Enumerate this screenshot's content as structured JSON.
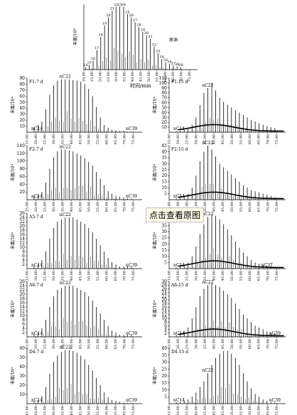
{
  "overlay": {
    "view_original_label": "点击查看原图"
  },
  "chart_data": [
    {
      "type": "line",
      "title": "原油",
      "ylabel": "丰度/10⁶",
      "xlabel": "时间/min",
      "xlim": [
        10,
        80
      ],
      "ylim": [
        0,
        4
      ],
      "x_ticks": [
        "10.00",
        "15.00",
        "20.00",
        "25.00",
        "30.00",
        "35.00",
        "40.00",
        "45.00",
        "50.00",
        "55.00",
        "60.00",
        "65.00",
        "70.00",
        "75.00"
      ],
      "y_ticks": [],
      "annotations": [
        "14",
        "15",
        "16",
        "17",
        "18",
        "19",
        "20",
        "21",
        "22",
        "23",
        "24",
        "25",
        "26",
        "27",
        "28",
        "29",
        "30",
        "31",
        "32",
        "33",
        "34",
        "35",
        "36",
        "37",
        "38",
        "39"
      ],
      "series": [
        {
          "name": "原油",
          "x": [
            14,
            15,
            16,
            17,
            18,
            19,
            20,
            21,
            22,
            23,
            24,
            25,
            26,
            27,
            28,
            29,
            30,
            31,
            32,
            33,
            34,
            35,
            36,
            37,
            38,
            39
          ],
          "y": [
            0.15,
            0.3,
            0.55,
            1.2,
            2.0,
            2.7,
            3.2,
            3.6,
            3.85,
            3.85,
            3.85,
            3.4,
            3.2,
            2.9,
            2.6,
            2.3,
            2.1,
            1.9,
            1.4,
            1.0,
            0.65,
            0.45,
            0.35,
            0.25,
            0.2,
            0.15
          ]
        }
      ]
    },
    {
      "type": "line",
      "title": "F1-7 d",
      "ylabel": "丰度/10⁴",
      "xlabel": "",
      "xlim": [
        15,
        80
      ],
      "ylim": [
        0,
        90
      ],
      "x_ticks": [
        "15.00",
        "20.00",
        "25.00",
        "30.00",
        "35.00",
        "40.00",
        "45.00",
        "50.00",
        "55.00",
        "60.00",
        "65.00",
        "70.00",
        "75.00"
      ],
      "y_ticks": [
        "10",
        "20",
        "30",
        "40",
        "50",
        "60",
        "70",
        "80",
        "90"
      ],
      "annotations": [
        "nC14",
        "nC22",
        "nC39"
      ],
      "series": [
        {
          "name": "F1-7 d",
          "x": [
            14,
            15,
            16,
            17,
            18,
            19,
            20,
            21,
            22,
            23,
            24,
            25,
            26,
            27,
            28,
            29,
            30,
            31,
            32,
            33,
            34,
            35,
            36,
            37,
            38,
            39
          ],
          "y": [
            8,
            12,
            18,
            38,
            62,
            78,
            86,
            88,
            88,
            88,
            87,
            86,
            84,
            80,
            72,
            60,
            42,
            25,
            12,
            7,
            4,
            3,
            2,
            2,
            1,
            1
          ]
        }
      ]
    },
    {
      "type": "line",
      "title": "F1-15 d",
      "ylabel": "丰度/10⁴",
      "xlabel": "",
      "xlim": [
        15,
        80
      ],
      "ylim": [
        0,
        110
      ],
      "x_ticks": [
        "15.00",
        "20.00",
        "25.00",
        "30.00",
        "35.00",
        "40.00",
        "45.00",
        "50.00",
        "55.00",
        "60.00",
        "65.00",
        "70.00",
        "75.00"
      ],
      "y_ticks": [
        "10",
        "20",
        "30",
        "40",
        "50",
        "60",
        "70",
        "80",
        "90",
        "100",
        "110"
      ],
      "annotations": [
        "nC14",
        "nC22"
      ],
      "series": [
        {
          "name": "F1-15 d",
          "x": [
            14,
            15,
            16,
            17,
            18,
            19,
            20,
            21,
            22,
            23,
            24,
            25,
            26,
            27,
            28,
            29,
            30,
            31,
            32,
            33,
            34,
            35,
            36,
            37,
            38,
            39
          ],
          "y": [
            2,
            3,
            5,
            8,
            15,
            30,
            55,
            80,
            90,
            100,
            85,
            70,
            62,
            56,
            50,
            45,
            40,
            35,
            30,
            25,
            22,
            18,
            15,
            12,
            10,
            8
          ]
        }
      ]
    },
    {
      "type": "line",
      "title": "F2-7 d",
      "ylabel": "丰度/10⁴",
      "xlabel": "",
      "xlim": [
        15,
        80
      ],
      "ylim": [
        0,
        140
      ],
      "x_ticks": [
        "15.00",
        "20.00",
        "25.00",
        "30.00",
        "35.00",
        "40.00",
        "45.00",
        "50.00",
        "55.00",
        "60.00",
        "65.00",
        "70.00",
        "75.00"
      ],
      "y_ticks": [
        "20",
        "40",
        "60",
        "80",
        "100",
        "120",
        "140"
      ],
      "annotations": [
        "nC14",
        "nC22",
        "nC39"
      ],
      "series": [
        {
          "name": "F2-7 d",
          "x": [
            14,
            15,
            16,
            17,
            18,
            19,
            20,
            21,
            22,
            23,
            24,
            25,
            26,
            27,
            28,
            29,
            30,
            31,
            32,
            33,
            34,
            35,
            36,
            37,
            38,
            39
          ],
          "y": [
            8,
            12,
            20,
            45,
            80,
            110,
            125,
            130,
            130,
            128,
            125,
            120,
            115,
            108,
            98,
            88,
            72,
            55,
            38,
            22,
            15,
            10,
            8,
            6,
            4,
            3
          ]
        }
      ]
    },
    {
      "type": "line",
      "title": "F2-15 d",
      "ylabel": "丰度/10⁴",
      "xlabel": "",
      "xlim": [
        15,
        80
      ],
      "ylim": [
        0,
        45
      ],
      "x_ticks": [
        "15.00",
        "20.00",
        "25.00",
        "30.00",
        "35.00",
        "40.00",
        "45.00",
        "50.00",
        "55.00",
        "60.00",
        "65.00",
        "70.00",
        "75.00"
      ],
      "y_ticks": [
        "5",
        "10",
        "15",
        "20",
        "25",
        "30",
        "35",
        "40",
        "45"
      ],
      "annotations": [
        "nC14",
        "nC22"
      ],
      "series": [
        {
          "name": "F2-15 d",
          "x": [
            14,
            15,
            16,
            17,
            18,
            19,
            20,
            21,
            22,
            23,
            24,
            25,
            26,
            27,
            28,
            29,
            30,
            31,
            32,
            33,
            34,
            35,
            36,
            37,
            38,
            39
          ],
          "y": [
            1,
            2,
            3,
            5,
            10,
            20,
            32,
            40,
            45,
            42,
            36,
            30,
            27,
            24,
            21,
            18,
            15,
            12,
            10,
            8,
            7,
            6,
            5,
            4,
            3,
            2
          ]
        }
      ]
    },
    {
      "type": "line",
      "title": "A5-7 d",
      "ylabel": "丰度/10⁴",
      "xlabel": "",
      "xlim": [
        15,
        80
      ],
      "ylim": [
        0,
        26
      ],
      "x_ticks": [
        "15.00",
        "20.00",
        "25.00",
        "30.00",
        "35.00",
        "40.00",
        "45.00",
        "50.00",
        "55.00",
        "60.00",
        "65.00",
        "70.00",
        "75.00"
      ],
      "y_ticks": [
        "2",
        "4",
        "6",
        "8",
        "10",
        "12",
        "14",
        "16",
        "18",
        "20",
        "22",
        "24",
        "26"
      ],
      "annotations": [
        "nC14",
        "nC22",
        "nC39"
      ],
      "series": [
        {
          "name": "A5-7 d",
          "x": [
            14,
            15,
            16,
            17,
            18,
            19,
            20,
            21,
            22,
            23,
            24,
            25,
            26,
            27,
            28,
            29,
            30,
            31,
            32,
            33,
            34,
            35,
            36,
            37,
            38,
            39
          ],
          "y": [
            1,
            2,
            4,
            8,
            14,
            19,
            22,
            23,
            24,
            24,
            24,
            23,
            22,
            21,
            19,
            17,
            14,
            11,
            8,
            5,
            3,
            2,
            1,
            1,
            1,
            1
          ]
        }
      ]
    },
    {
      "type": "line",
      "title": "A5-15 d",
      "ylabel": "丰度/10⁴",
      "xlabel": "",
      "xlim": [
        15,
        80
      ],
      "ylim": [
        0,
        45
      ],
      "x_ticks": [
        "15.00",
        "20.00",
        "25.00",
        "30.00",
        "35.00",
        "40.00",
        "45.00",
        "50.00",
        "55.00",
        "60.00",
        "65.00",
        "70.00",
        "75.00"
      ],
      "y_ticks": [
        "5",
        "10",
        "15",
        "20",
        "25",
        "30",
        "35",
        "40",
        "45"
      ],
      "annotations": [
        "nC14",
        "nC22",
        "nC37"
      ],
      "series": [
        {
          "name": "A5-15 d",
          "x": [
            14,
            15,
            16,
            17,
            18,
            19,
            20,
            21,
            22,
            23,
            24,
            25,
            26,
            27,
            28,
            29,
            30,
            31,
            32,
            33,
            34,
            35,
            36,
            37,
            38,
            39
          ],
          "y": [
            1,
            2,
            3,
            5,
            10,
            18,
            28,
            36,
            42,
            44,
            43,
            40,
            36,
            32,
            27,
            22,
            17,
            13,
            10,
            7,
            5,
            4,
            3,
            2,
            2,
            1
          ]
        }
      ]
    },
    {
      "type": "line",
      "title": "A6-7 d",
      "ylabel": "丰度/10⁴",
      "xlabel": "",
      "xlim": [
        15,
        80
      ],
      "ylim": [
        0,
        26
      ],
      "x_ticks": [
        "15.00",
        "20.00",
        "25.00",
        "30.00",
        "35.00",
        "40.00",
        "45.00",
        "50.00",
        "55.00",
        "60.00",
        "65.00",
        "70.00",
        "75.00"
      ],
      "y_ticks": [
        "2",
        "4",
        "6",
        "8",
        "10",
        "12",
        "14",
        "16",
        "18",
        "20",
        "22",
        "24",
        "26"
      ],
      "annotations": [
        "nC14",
        "nC22",
        "nC39"
      ],
      "series": [
        {
          "name": "A6-7 d",
          "x": [
            14,
            15,
            16,
            17,
            18,
            19,
            20,
            21,
            22,
            23,
            24,
            25,
            26,
            27,
            28,
            29,
            30,
            31,
            32,
            33,
            34,
            35,
            36,
            37,
            38,
            39
          ],
          "y": [
            1,
            2,
            4,
            8,
            14,
            19,
            22,
            23,
            24,
            24,
            24,
            23,
            22,
            21,
            19,
            17,
            14,
            11,
            8,
            5,
            3,
            2,
            1,
            1,
            1,
            1
          ]
        }
      ]
    },
    {
      "type": "line",
      "title": "A6-15 d",
      "ylabel": "丰度/10⁴",
      "xlabel": "",
      "xlim": [
        15,
        80
      ],
      "ylim": [
        0,
        30
      ],
      "x_ticks": [
        "15.00",
        "20.00",
        "25.00",
        "30.00",
        "35.00",
        "40.00",
        "45.00",
        "50.00",
        "55.00",
        "60.00",
        "65.00",
        "70.00",
        "75.00"
      ],
      "y_ticks": [
        "2",
        "4",
        "6",
        "8",
        "10",
        "12",
        "14",
        "16",
        "18",
        "20",
        "22",
        "24",
        "26",
        "28",
        "30"
      ],
      "annotations": [
        "nC14",
        "nC22",
        "nC39"
      ],
      "series": [
        {
          "name": "A6-15 d",
          "x": [
            14,
            15,
            16,
            17,
            18,
            19,
            20,
            21,
            22,
            23,
            24,
            25,
            26,
            27,
            28,
            29,
            30,
            31,
            32,
            33,
            34,
            35,
            36,
            37,
            38,
            39
          ],
          "y": [
            1,
            2,
            3,
            5,
            10,
            16,
            22,
            26,
            28,
            29,
            28,
            27,
            25,
            23,
            21,
            18,
            15,
            12,
            10,
            8,
            6,
            5,
            4,
            3,
            2,
            2
          ]
        }
      ]
    },
    {
      "type": "line",
      "title": "D4-7 d",
      "ylabel": "丰度/10⁴",
      "xlabel": "时间/min",
      "xlim": [
        15,
        80
      ],
      "ylim": [
        0,
        60
      ],
      "x_ticks": [
        "15.00",
        "20.00",
        "25.00",
        "30.00",
        "35.00",
        "40.00",
        "45.00",
        "50.00",
        "55.00",
        "60.00",
        "65.00",
        "70.00",
        "75.00"
      ],
      "y_ticks": [
        "10",
        "20",
        "30",
        "40",
        "50",
        "60"
      ],
      "annotations": [
        "nC14",
        "nC22",
        "nC39"
      ],
      "series": [
        {
          "name": "D4-7 d",
          "x": [
            14,
            15,
            16,
            17,
            18,
            19,
            20,
            21,
            22,
            23,
            24,
            25,
            26,
            27,
            28,
            29,
            30,
            31,
            32,
            33,
            34,
            35,
            36,
            37,
            38,
            39
          ],
          "y": [
            2,
            4,
            8,
            18,
            32,
            45,
            52,
            56,
            58,
            58,
            57,
            55,
            52,
            48,
            42,
            36,
            28,
            20,
            12,
            7,
            4,
            3,
            2,
            1,
            1,
            1
          ]
        }
      ]
    },
    {
      "type": "line",
      "title": "D4-15 d",
      "ylabel": "丰度/10⁴",
      "xlabel": "时间/min",
      "xlim": [
        15,
        80
      ],
      "ylim": [
        0,
        40
      ],
      "x_ticks": [
        "15.00",
        "20.00",
        "25.00",
        "30.00",
        "35.00",
        "40.00",
        "45.00",
        "50.00",
        "55.00",
        "60.00",
        "65.00",
        "70.00",
        "75.00"
      ],
      "y_ticks": [
        "5",
        "10",
        "15",
        "20",
        "25",
        "30",
        "35",
        "40"
      ],
      "annotations": [
        "nC14",
        "nC22",
        "nC39"
      ],
      "series": [
        {
          "name": "D4-15 d",
          "x": [
            14,
            15,
            16,
            17,
            18,
            19,
            20,
            21,
            22,
            23,
            24,
            25,
            26,
            27,
            28,
            29,
            30,
            31,
            32,
            33,
            34,
            35,
            36,
            37,
            38,
            39
          ],
          "y": [
            1,
            1,
            2,
            3,
            5,
            8,
            12,
            16,
            22,
            28,
            33,
            36,
            38,
            38,
            36,
            33,
            28,
            22,
            16,
            11,
            7,
            5,
            3,
            2,
            1,
            1
          ]
        }
      ]
    }
  ]
}
